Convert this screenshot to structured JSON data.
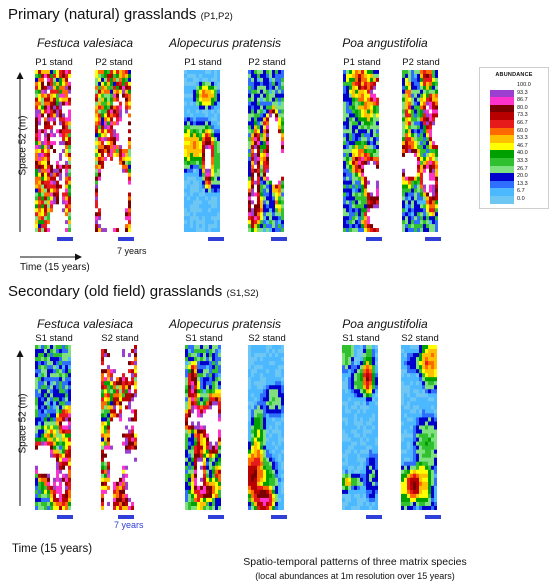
{
  "sections": [
    {
      "title": "Primary (natural) grasslands",
      "code": "(P1,P2)",
      "species": [
        {
          "name": "Festuca valesiaca",
          "stands": [
            "P1 stand",
            "P2 stand"
          ],
          "abundance_level": [
            "high",
            "high"
          ]
        },
        {
          "name": "Alopecurus pratensis",
          "stands": [
            "P1 stand",
            "P2 stand"
          ],
          "abundance_level": [
            "low",
            "medium"
          ]
        },
        {
          "name": "Poa angustifolia",
          "stands": [
            "P1 stand",
            "P2 stand"
          ],
          "abundance_level": [
            "medium",
            "medium"
          ]
        }
      ],
      "bar_label": "7 years",
      "time_label": "Time (15 years)"
    },
    {
      "title": "Secondary (old field) grasslands",
      "code": "(S1,S2)",
      "species": [
        {
          "name": "Festuca valesiaca",
          "stands": [
            "S1 stand",
            "S2 stand"
          ],
          "abundance_level": [
            "medium",
            "high"
          ]
        },
        {
          "name": "Alopecurus pratensis",
          "stands": [
            "S1 stand",
            "S2 stand"
          ],
          "abundance_level": [
            "medium",
            "low"
          ]
        },
        {
          "name": "Poa angustifolia",
          "stands": [
            "S1 stand",
            "S2 stand"
          ],
          "abundance_level": [
            "low",
            "low"
          ]
        }
      ],
      "bar_label": "7 years",
      "time_label": "Time (15 years)"
    }
  ],
  "space_label": "Space 52 (m)",
  "legend": {
    "title": "ABUNDANCE",
    "entries": [
      {
        "label": "100.0",
        "color": "#ffffff"
      },
      {
        "label": "93.3",
        "color": "#9b3fd0"
      },
      {
        "label": "86.7",
        "color": "#ff33cc"
      },
      {
        "label": "80.0",
        "color": "#7a0000"
      },
      {
        "label": "73.3",
        "color": "#b80000"
      },
      {
        "label": "66.7",
        "color": "#e61a1a"
      },
      {
        "label": "60.0",
        "color": "#ff6a00"
      },
      {
        "label": "53.3",
        "color": "#ffc000"
      },
      {
        "label": "46.7",
        "color": "#ffff00"
      },
      {
        "label": "40.0",
        "color": "#00a000"
      },
      {
        "label": "33.3",
        "color": "#30c030"
      },
      {
        "label": "26.7",
        "color": "#7fe07f"
      },
      {
        "label": "20.0",
        "color": "#0000cc"
      },
      {
        "label": "13.3",
        "color": "#2f6fff"
      },
      {
        "label": "6.7",
        "color": "#4cb8ff"
      },
      {
        "label": "0.0",
        "color": "#6ec6f2"
      }
    ]
  },
  "caption": {
    "line1": "Spatio-temporal patterns of three matrix species",
    "line2": "(local abundances at 1m resolution over 15 years)"
  }
}
